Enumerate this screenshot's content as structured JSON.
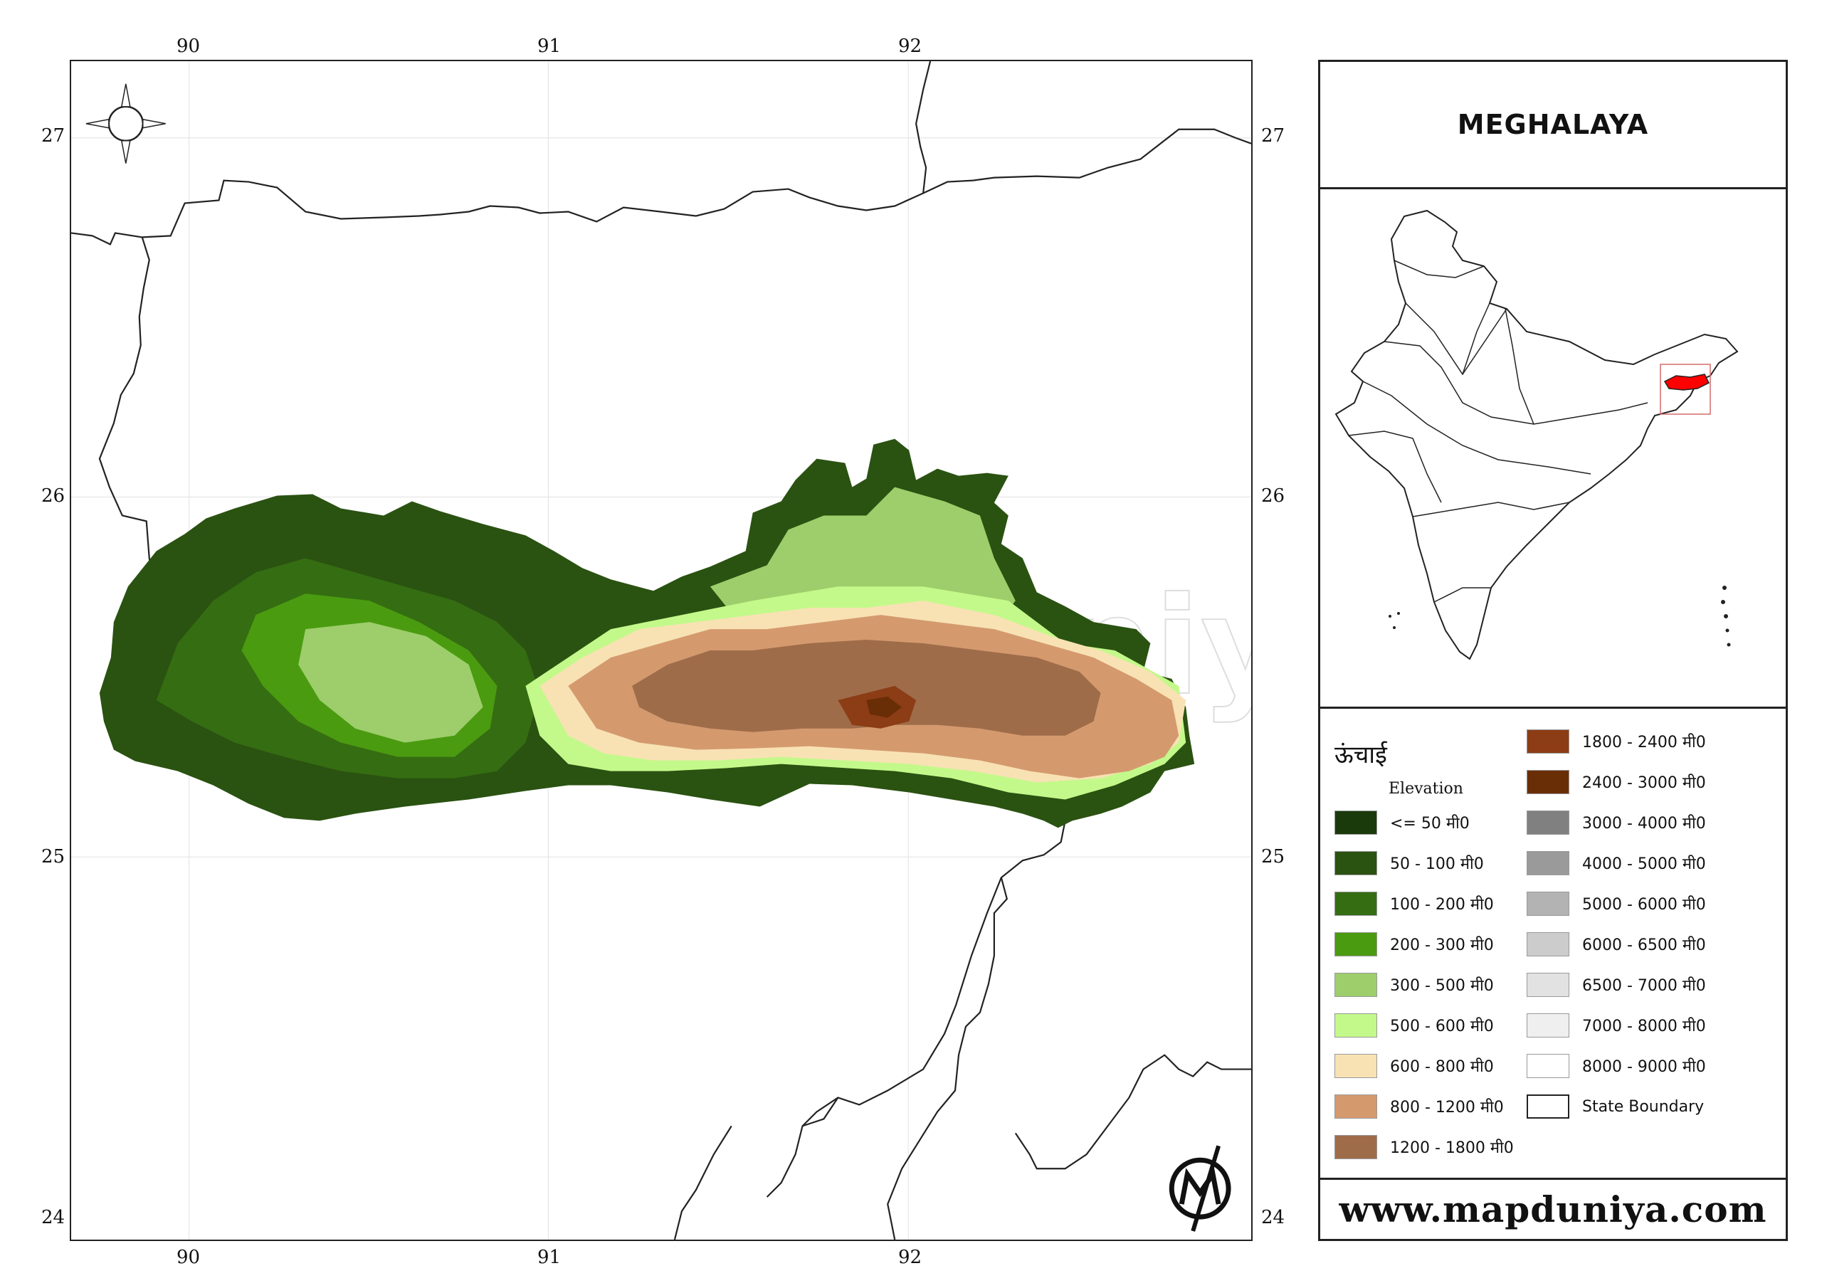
{
  "title": "MEGHALAYA",
  "website": "www.mapduniya.com",
  "watermark": "www.mapduniya.com",
  "axis_labels": {
    "top": [
      "90",
      "91",
      "92"
    ],
    "bottom": [
      "90",
      "91",
      "92"
    ],
    "left": [
      "27",
      "26",
      "25",
      "24"
    ],
    "right": [
      "27",
      "26",
      "25",
      "24"
    ]
  },
  "legend": {
    "heading": "ऊंचाई",
    "subheading": "Elevation",
    "items_left": [
      {
        "label": "<= 50 मी0",
        "color": "#1b3a0c"
      },
      {
        "label": "50 - 100 मी0",
        "color": "#2a5211"
      },
      {
        "label": "100 - 200 मी0",
        "color": "#356d12"
      },
      {
        "label": "200 - 300 मी0",
        "color": "#4a9b10"
      },
      {
        "label": "300 - 500 मी0",
        "color": "#9dce6b"
      },
      {
        "label": "500 - 600 मी0",
        "color": "#c3f98a"
      },
      {
        "label": "600 - 800 मी0",
        "color": "#f8e2b4"
      },
      {
        "label": "800 - 1200 मी0",
        "color": "#d49a6e"
      },
      {
        "label": "1200 - 1800 मी0",
        "color": "#9f6c4a"
      }
    ],
    "items_right": [
      {
        "label": "1800 - 2400 मी0",
        "color": "#8c3d15"
      },
      {
        "label": "2400 - 3000 मी0",
        "color": "#6a2e07"
      },
      {
        "label": "3000 - 4000 मी0",
        "color": "#808080"
      },
      {
        "label": "4000 - 5000 मी0",
        "color": "#9a9a9a"
      },
      {
        "label": "5000 - 6000 मी0",
        "color": "#b3b3b3"
      },
      {
        "label": "6000 - 6500 मी0",
        "color": "#cccccc"
      },
      {
        "label": "6500 - 7000 मी0",
        "color": "#e2e2e2"
      },
      {
        "label": "7000 - 8000 मी0",
        "color": "#efefef"
      },
      {
        "label": "8000 - 9000 मी0",
        "color": "#ffffff"
      },
      {
        "label": "State Boundary",
        "color": "#ffffff"
      }
    ]
  },
  "icons": {
    "compass": "compass-rose-icon",
    "logo": "mapduniya-logo-icon"
  },
  "highlight_color": "#ff0000"
}
